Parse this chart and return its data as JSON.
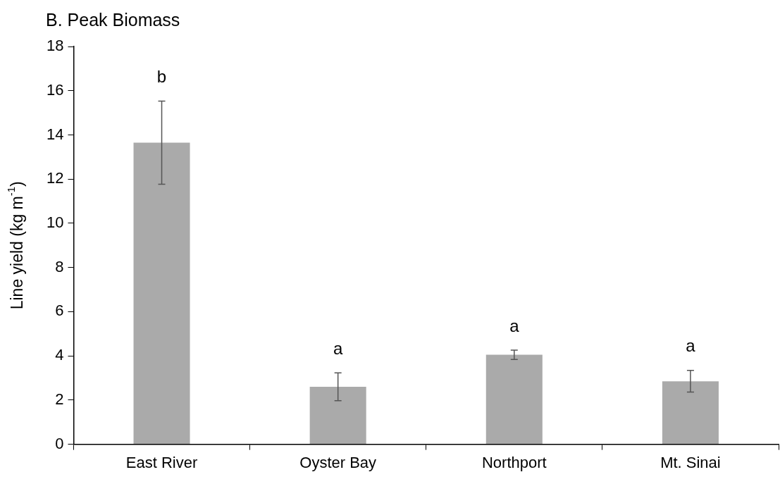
{
  "chart_data": {
    "type": "bar",
    "title": "B. Peak Biomass",
    "ylabel": "Line yield (kg m$^{-1}$)",
    "categories": [
      "East River",
      "Oyster Bay",
      "Northport",
      "Mt. Sinai"
    ],
    "values": [
      13.65,
      2.6,
      4.05,
      2.85
    ],
    "errors": [
      1.88,
      0.63,
      0.21,
      0.49
    ],
    "color": "#aaaaaa",
    "ylim": [
      0,
      18
    ],
    "yticks": [
      0,
      2,
      4,
      6,
      8,
      10,
      12,
      14,
      16,
      18
    ],
    "grid": false,
    "annotations": [
      "b",
      "a",
      "a",
      "a"
    ]
  }
}
